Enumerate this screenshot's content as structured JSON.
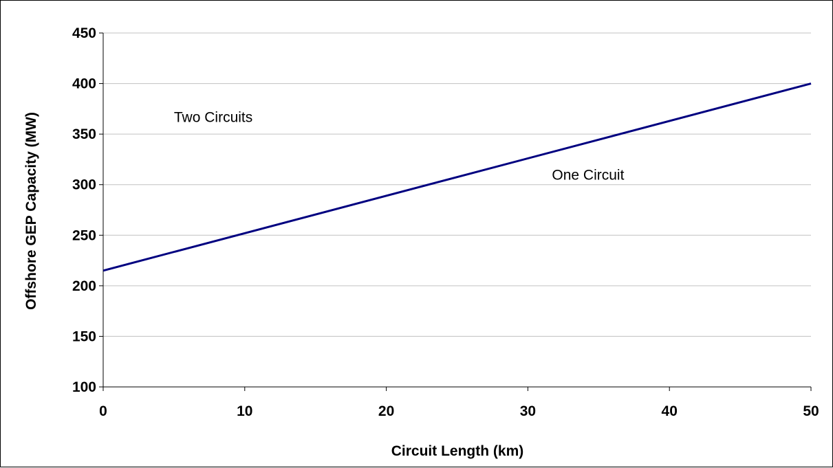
{
  "chart_data": {
    "type": "line",
    "title": "",
    "xlabel": "Circuit Length (km)",
    "ylabel": "Offshore GEP Capacity (MW)",
    "xlim": [
      0,
      50
    ],
    "ylim": [
      100,
      450
    ],
    "x_ticks": [
      "0",
      "10",
      "20",
      "30",
      "40",
      "50"
    ],
    "y_ticks": [
      "100",
      "150",
      "200",
      "250",
      "300",
      "350",
      "400",
      "450"
    ],
    "grid": "horizontal",
    "legend": "none",
    "series": [
      {
        "x": [
          0,
          50
        ],
        "values": [
          215,
          400
        ],
        "color": "#000080"
      }
    ],
    "annotations": [
      {
        "text": "Two Circuits",
        "x": 5,
        "y": 362
      },
      {
        "text": "One Circuit",
        "x": 31.7,
        "y": 305
      }
    ]
  }
}
